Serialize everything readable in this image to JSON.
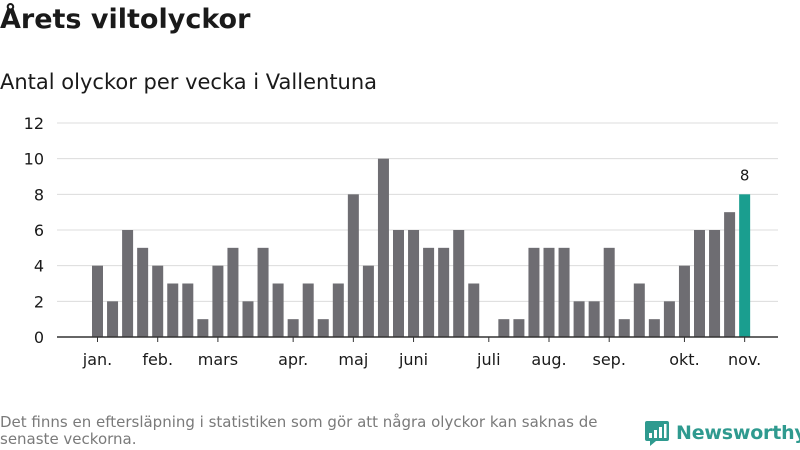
{
  "header": {
    "title": "Årets viltolyckor",
    "subtitle": "Antal olyckor per vecka i Vallentuna"
  },
  "footer": {
    "note": "Det finns en eftersläpning i statistiken som gör att några olyckor kan saknas de senaste veckorna.",
    "brand": "Newsworthy"
  },
  "colors": {
    "bar": "#6e6d72",
    "highlight": "#1a9e8f",
    "grid": "#dcdcdc",
    "brand": "#2f9a8f"
  },
  "chart_data": {
    "type": "bar",
    "values": [
      4,
      2,
      6,
      5,
      4,
      3,
      3,
      1,
      4,
      5,
      2,
      5,
      3,
      1,
      3,
      1,
      3,
      8,
      4,
      10,
      6,
      6,
      5,
      5,
      6,
      3,
      0,
      1,
      1,
      5,
      5,
      5,
      2,
      2,
      5,
      1,
      3,
      1,
      2,
      4,
      6,
      6,
      7,
      8
    ],
    "highlight_last": true,
    "last_value_label": "8",
    "ylim": [
      0,
      12
    ],
    "yticks": [
      "0",
      "2",
      "4",
      "6",
      "8",
      "10",
      "12"
    ],
    "month_labels": [
      {
        "label": "jan.",
        "at_bar": 0
      },
      {
        "label": "feb.",
        "at_bar": 4
      },
      {
        "label": "mars",
        "at_bar": 8
      },
      {
        "label": "apr.",
        "at_bar": 13
      },
      {
        "label": "maj",
        "at_bar": 17
      },
      {
        "label": "juni",
        "at_bar": 21
      },
      {
        "label": "juli",
        "at_bar": 26
      },
      {
        "label": "aug.",
        "at_bar": 30
      },
      {
        "label": "sep.",
        "at_bar": 34
      },
      {
        "label": "okt.",
        "at_bar": 39
      },
      {
        "label": "nov.",
        "at_bar": 43
      }
    ],
    "grid": true,
    "xlabel": "",
    "ylabel": ""
  }
}
